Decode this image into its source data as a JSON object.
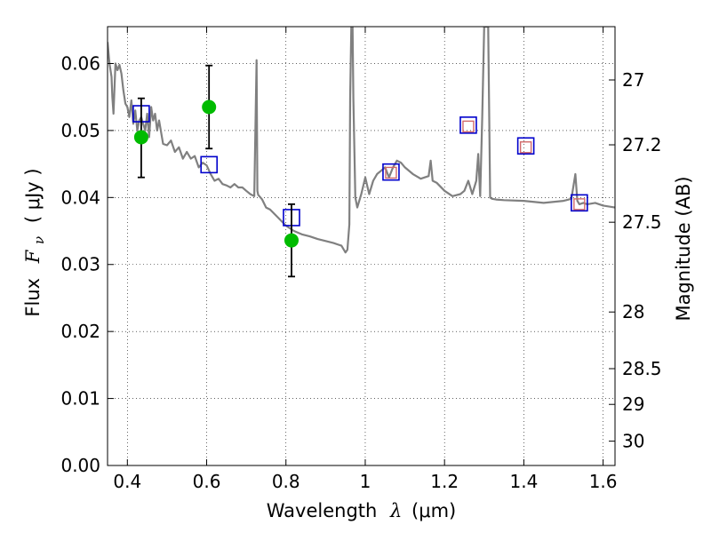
{
  "chart_data": {
    "type": "line",
    "title": "",
    "xlabel_parts": {
      "prefix": "Wavelength",
      "symbol": "λ",
      "unit": "(μm)"
    },
    "ylabel_parts": {
      "prefix": "Flux",
      "symbol": "F",
      "subscript": "ν",
      "unit": "( μJy )"
    },
    "y2label": "Magnitude (AB)",
    "xlim": [
      0.35,
      1.63
    ],
    "ylim": [
      0.0,
      0.0655
    ],
    "grid": true,
    "x_ticks": [
      0.4,
      0.6,
      0.8,
      1.0,
      1.2,
      1.4,
      1.6
    ],
    "x_tick_labels": [
      "0.4",
      "0.6",
      "0.8",
      "1",
      "1.2",
      "1.4",
      "1.6"
    ],
    "y_ticks": [
      0.0,
      0.01,
      0.02,
      0.03,
      0.04,
      0.05,
      0.06
    ],
    "y_tick_labels": [
      "0.00",
      "0.01",
      "0.02",
      "0.03",
      "0.04",
      "0.05",
      "0.06"
    ],
    "y2_ticks": [
      27,
      27.2,
      27.5,
      28,
      28.5,
      29,
      30
    ],
    "y2_tick_labels": [
      "27",
      "27.2",
      "27.5",
      "28",
      "28.5",
      "29",
      "30"
    ],
    "spectrum": {
      "color": "#808080",
      "x": [
        0.35,
        0.355,
        0.36,
        0.362,
        0.365,
        0.37,
        0.375,
        0.38,
        0.385,
        0.39,
        0.395,
        0.4,
        0.405,
        0.41,
        0.415,
        0.42,
        0.425,
        0.43,
        0.435,
        0.44,
        0.445,
        0.45,
        0.455,
        0.46,
        0.465,
        0.47,
        0.475,
        0.48,
        0.49,
        0.5,
        0.51,
        0.52,
        0.53,
        0.54,
        0.55,
        0.56,
        0.57,
        0.58,
        0.59,
        0.6,
        0.61,
        0.62,
        0.63,
        0.64,
        0.65,
        0.66,
        0.67,
        0.68,
        0.69,
        0.7,
        0.71,
        0.72,
        0.726,
        0.728,
        0.73,
        0.74,
        0.75,
        0.76,
        0.78,
        0.8,
        0.82,
        0.84,
        0.86,
        0.88,
        0.9,
        0.92,
        0.94,
        0.95,
        0.955,
        0.96,
        0.962,
        0.965,
        0.968,
        0.97,
        0.975,
        0.98,
        0.99,
        1.0,
        1.01,
        1.02,
        1.03,
        1.04,
        1.05,
        1.06,
        1.07,
        1.08,
        1.09,
        1.1,
        1.12,
        1.14,
        1.16,
        1.165,
        1.17,
        1.18,
        1.2,
        1.22,
        1.24,
        1.25,
        1.26,
        1.27,
        1.28,
        1.285,
        1.29,
        1.295,
        1.3,
        1.31,
        1.315,
        1.32,
        1.33,
        1.35,
        1.4,
        1.45,
        1.5,
        1.52,
        1.53,
        1.535,
        1.54,
        1.55,
        1.56,
        1.58,
        1.6,
        1.63
      ],
      "y": [
        0.0632,
        0.06,
        0.058,
        0.055,
        0.0525,
        0.06,
        0.059,
        0.0598,
        0.0585,
        0.056,
        0.054,
        0.0535,
        0.052,
        0.0545,
        0.051,
        0.053,
        0.05,
        0.0515,
        0.052,
        0.051,
        0.05,
        0.0525,
        0.049,
        0.0535,
        0.0515,
        0.0525,
        0.05,
        0.0515,
        0.048,
        0.0478,
        0.0485,
        0.0468,
        0.0475,
        0.0458,
        0.0468,
        0.0458,
        0.0462,
        0.0445,
        0.0452,
        0.0448,
        0.0435,
        0.0425,
        0.0428,
        0.042,
        0.0418,
        0.0415,
        0.042,
        0.0415,
        0.0415,
        0.041,
        0.0405,
        0.0402,
        0.0605,
        0.041,
        0.0404,
        0.0397,
        0.0385,
        0.0382,
        0.037,
        0.0358,
        0.035,
        0.0345,
        0.0342,
        0.0338,
        0.0335,
        0.0332,
        0.0328,
        0.0318,
        0.0322,
        0.036,
        0.055,
        0.0655,
        0.0655,
        0.0548,
        0.04,
        0.0385,
        0.0405,
        0.043,
        0.0405,
        0.0425,
        0.0435,
        0.044,
        0.0445,
        0.043,
        0.0445,
        0.0455,
        0.0452,
        0.0445,
        0.0435,
        0.0428,
        0.0432,
        0.0455,
        0.0425,
        0.0422,
        0.041,
        0.0402,
        0.0405,
        0.041,
        0.0425,
        0.0405,
        0.0425,
        0.0465,
        0.0402,
        0.052,
        0.0655,
        0.0655,
        0.04,
        0.0398,
        0.0397,
        0.0396,
        0.0395,
        0.0392,
        0.0395,
        0.0398,
        0.0435,
        0.0395,
        0.039,
        0.0392,
        0.039,
        0.0392,
        0.0388,
        0.0385
      ]
    },
    "model_squares": {
      "color": "#0000cc",
      "x": [
        0.435,
        0.606,
        0.814,
        1.065,
        1.26,
        1.405,
        1.54
      ],
      "y": [
        0.0525,
        0.0449,
        0.037,
        0.0438,
        0.0508,
        0.0477,
        0.0392
      ]
    },
    "inner_squares": {
      "color": "#d26a6a",
      "x": [
        1.065,
        1.26,
        1.405,
        1.54
      ],
      "y": [
        0.0437,
        0.0506,
        0.0475,
        0.039
      ]
    },
    "observed": {
      "color": "#00bb00",
      "x": [
        0.435,
        0.606,
        0.814
      ],
      "y": [
        0.049,
        0.0535,
        0.0336
      ],
      "yerr_low": [
        0.043,
        0.0473,
        0.0282
      ],
      "yerr_high": [
        0.0548,
        0.0597,
        0.039
      ]
    }
  }
}
